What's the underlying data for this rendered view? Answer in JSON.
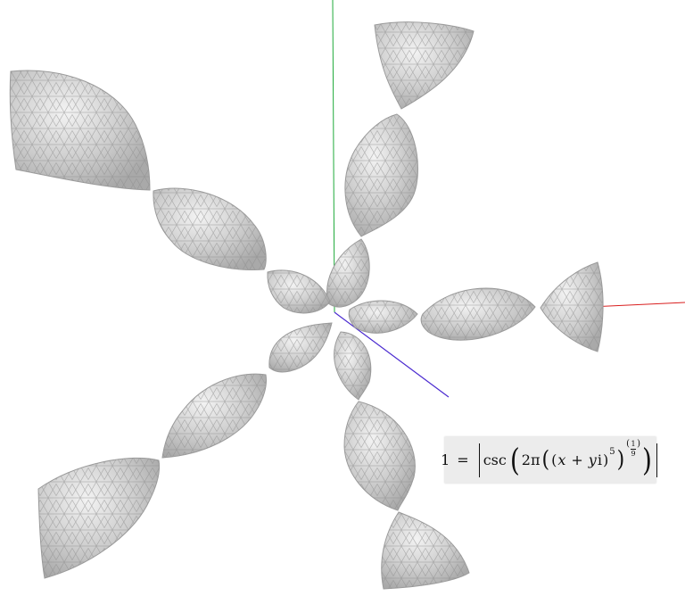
{
  "scene": {
    "background": "#ffffff",
    "axis_colors": {
      "x": "#d91f1f",
      "y": "#1faa3a",
      "z": "#4b2bd0"
    },
    "surface_color": "#cfcfcf",
    "mesh_color": "#7c7c7c"
  },
  "equation": {
    "lhs": "1",
    "equals": "=",
    "function": "csc",
    "coefficient": "2π",
    "x": "x",
    "plus": "+",
    "y": "y",
    "imaginary": "i",
    "power": "5",
    "exp_numerator": "1",
    "exp_denominator": "9"
  }
}
